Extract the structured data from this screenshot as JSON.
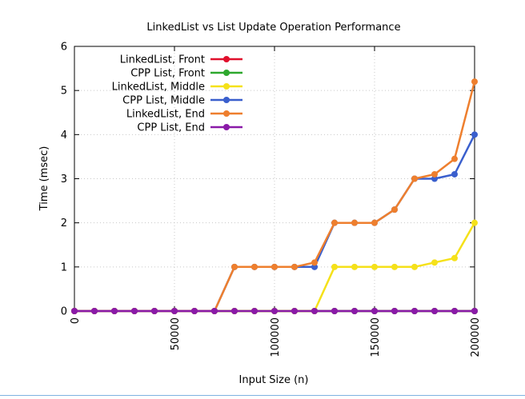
{
  "chart_data": {
    "type": "line",
    "title": "LinkedList vs List Update Operation Performance",
    "xlabel": "Input Size (n)",
    "ylabel": "Time (msec)",
    "xlim": [
      0,
      200000
    ],
    "ylim": [
      0,
      6
    ],
    "xticks": [
      0,
      50000,
      100000,
      150000,
      200000
    ],
    "xtick_labels": [
      "0",
      "50000",
      "100000",
      "150000",
      "200000"
    ],
    "yticks": [
      0,
      1,
      2,
      3,
      4,
      5,
      6
    ],
    "ytick_labels": [
      "0",
      "1",
      "2",
      "3",
      "4",
      "5",
      "6"
    ],
    "grid": true,
    "legend_position": "top-left",
    "x": [
      0,
      10000,
      20000,
      30000,
      40000,
      50000,
      60000,
      70000,
      80000,
      90000,
      100000,
      110000,
      120000,
      130000,
      140000,
      150000,
      160000,
      170000,
      180000,
      190000,
      200000
    ],
    "series": [
      {
        "name": "LinkedList, Front",
        "color": "#e0102c",
        "values": [
          0,
          0,
          0,
          0,
          0,
          0,
          0,
          0,
          0,
          0,
          0,
          0,
          0,
          0,
          0,
          0,
          0,
          0,
          0,
          0,
          0
        ]
      },
      {
        "name": "CPP List, Front",
        "color": "#2ea82e",
        "values": [
          0,
          0,
          0,
          0,
          0,
          0,
          0,
          0,
          0,
          0,
          0,
          0,
          0,
          0,
          0,
          0,
          0,
          0,
          0,
          0,
          0
        ]
      },
      {
        "name": "LinkedList, Middle",
        "color": "#f5e11a",
        "values": [
          0,
          0,
          0,
          0,
          0,
          0,
          0,
          0,
          0,
          0,
          0,
          0,
          0,
          1,
          1,
          1,
          1,
          1,
          1.1,
          1.2,
          2
        ]
      },
      {
        "name": "CPP List, Middle",
        "color": "#3a5fcd",
        "values": [
          0,
          0,
          0,
          0,
          0,
          0,
          0,
          0,
          1,
          1,
          1,
          1,
          1,
          2,
          2,
          2,
          2.3,
          3,
          3,
          3.1,
          4
        ]
      },
      {
        "name": "LinkedList, End",
        "color": "#ee7f2e",
        "values": [
          0,
          0,
          0,
          0,
          0,
          0,
          0,
          0,
          1,
          1,
          1,
          1,
          1.1,
          2,
          2,
          2,
          2.3,
          3,
          3.1,
          3.45,
          5.2
        ]
      },
      {
        "name": "CPP List, End",
        "color": "#8a1aa8",
        "values": [
          0,
          0,
          0,
          0,
          0,
          0,
          0,
          0,
          0,
          0,
          0,
          0,
          0,
          0,
          0,
          0,
          0,
          0,
          0,
          0,
          0
        ]
      }
    ]
  }
}
